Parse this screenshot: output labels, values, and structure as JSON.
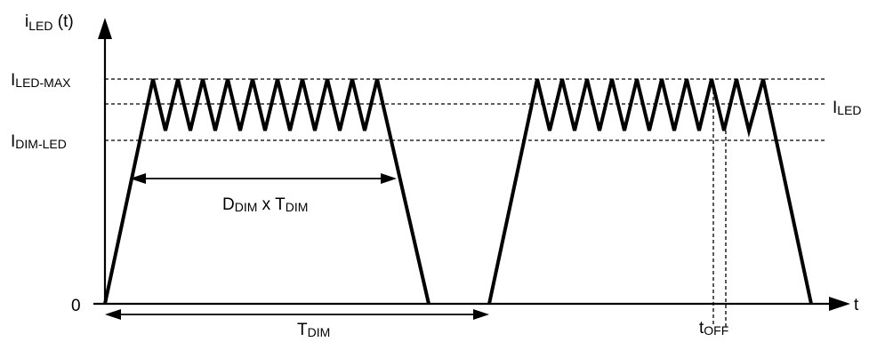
{
  "axes": {
    "y_label": {
      "main": "i",
      "sub": "LED",
      "suffix": " (t)"
    },
    "x_label": "t"
  },
  "levels": {
    "max": {
      "main": "I",
      "sub": "LED-MAX"
    },
    "avg": {
      "main": "I",
      "sub": "LED"
    },
    "dim": {
      "main": "I",
      "sub": "DIM-LED"
    },
    "zero": "0"
  },
  "annotations": {
    "on_time": {
      "a": "D",
      "a_sub": "DIM",
      "mid": " x T",
      "b_sub": "DIM"
    },
    "period": {
      "main": "T",
      "sub": "DIM"
    },
    "off_time": {
      "main": "t",
      "sub": "OFF"
    }
  }
}
